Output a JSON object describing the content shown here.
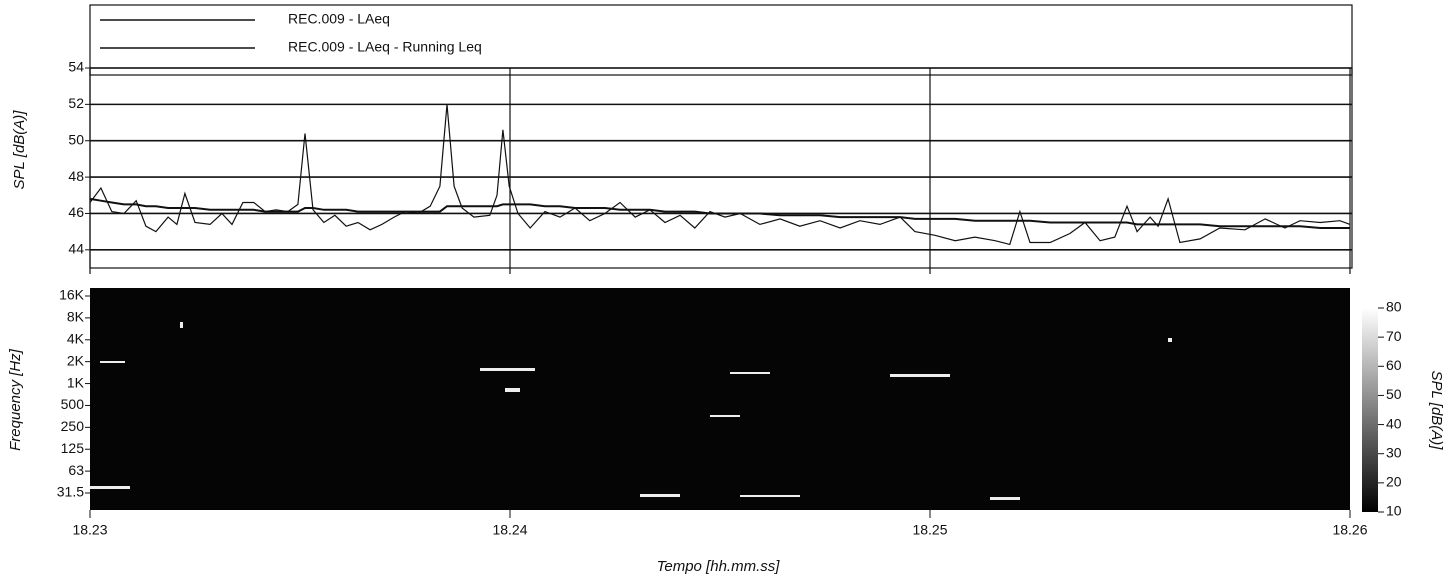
{
  "chart_data": [
    {
      "type": "line",
      "y_label": "SPL [dB(A)]",
      "xlim": [
        18.23,
        18.26
      ],
      "xticks": [
        18.23,
        18.24,
        18.25,
        18.26
      ],
      "ylim": [
        43,
        54
      ],
      "yticks": [
        44,
        46,
        48,
        50,
        52,
        54
      ],
      "grid": true,
      "legend": "top",
      "x": [
        18.23,
        18.23026,
        18.23052,
        18.23081,
        18.2311,
        18.23133,
        18.23157,
        18.23186,
        18.23207,
        18.23226,
        18.2325,
        18.23286,
        18.23314,
        18.23338,
        18.23364,
        18.2339,
        18.23417,
        18.23443,
        18.23471,
        18.23495,
        18.23512,
        18.23531,
        18.23557,
        18.23583,
        18.2361,
        18.23638,
        18.23667,
        18.23695,
        18.23724,
        18.2375,
        18.23781,
        18.2381,
        18.23833,
        18.2385,
        18.23867,
        18.23886,
        18.23914,
        18.23952,
        18.23969,
        18.23983,
        18.23998,
        18.24019,
        18.24048,
        18.24083,
        18.24119,
        18.24155,
        18.2419,
        18.24226,
        18.24262,
        18.24298,
        18.24333,
        18.24369,
        18.24405,
        18.2444,
        18.24476,
        18.24512,
        18.24548,
        18.24595,
        18.24643,
        18.2469,
        18.24738,
        18.24786,
        18.24833,
        18.24881,
        18.24929,
        18.24964,
        18.25012,
        18.2506,
        18.25107,
        18.25155,
        18.2519,
        18.25214,
        18.25238,
        18.25286,
        18.25333,
        18.25369,
        18.25405,
        18.2544,
        18.25469,
        18.25493,
        18.25524,
        18.25543,
        18.25567,
        18.25595,
        18.25643,
        18.2569,
        18.2575,
        18.25798,
        18.25845,
        18.25881,
        18.25929,
        18.25976,
        18.26
      ],
      "series": [
        {
          "name": "REC.009 - LAeq",
          "color": "#111111",
          "values": [
            46.6,
            47.4,
            46.1,
            46.0,
            46.7,
            45.3,
            45.0,
            45.8,
            45.4,
            47.1,
            45.5,
            45.4,
            46.0,
            45.4,
            46.6,
            46.6,
            46.1,
            46.2,
            46.1,
            46.5,
            50.4,
            46.2,
            45.5,
            45.9,
            45.3,
            45.5,
            45.1,
            45.4,
            45.8,
            46.1,
            46.0,
            46.4,
            47.5,
            52.0,
            47.5,
            46.3,
            45.8,
            45.9,
            47.0,
            50.6,
            47.5,
            46.0,
            45.2,
            46.1,
            45.8,
            46.3,
            45.6,
            46.0,
            46.6,
            45.8,
            46.2,
            45.5,
            45.9,
            45.2,
            46.1,
            45.8,
            46.0,
            45.4,
            45.7,
            45.3,
            45.6,
            45.2,
            45.6,
            45.4,
            45.8,
            45.0,
            44.8,
            44.5,
            44.7,
            44.5,
            44.3,
            46.1,
            44.4,
            44.4,
            44.9,
            45.5,
            44.5,
            44.7,
            46.4,
            45.0,
            45.8,
            45.3,
            46.8,
            44.4,
            44.6,
            45.2,
            45.1,
            45.7,
            45.2,
            45.6,
            45.5,
            45.6,
            45.4
          ]
        },
        {
          "name": "REC.009 - LAeq - Running Leq",
          "color": "#111111",
          "values": [
            46.8,
            46.7,
            46.6,
            46.5,
            46.5,
            46.4,
            46.4,
            46.3,
            46.3,
            46.3,
            46.3,
            46.2,
            46.2,
            46.2,
            46.2,
            46.2,
            46.1,
            46.1,
            46.1,
            46.1,
            46.3,
            46.3,
            46.2,
            46.2,
            46.2,
            46.1,
            46.1,
            46.1,
            46.1,
            46.1,
            46.1,
            46.1,
            46.1,
            46.4,
            46.4,
            46.4,
            46.4,
            46.4,
            46.4,
            46.5,
            46.5,
            46.5,
            46.5,
            46.4,
            46.4,
            46.3,
            46.3,
            46.3,
            46.2,
            46.2,
            46.2,
            46.1,
            46.1,
            46.1,
            46.0,
            46.0,
            46.0,
            46.0,
            45.9,
            45.9,
            45.9,
            45.8,
            45.8,
            45.8,
            45.8,
            45.7,
            45.7,
            45.7,
            45.6,
            45.6,
            45.6,
            45.6,
            45.6,
            45.5,
            45.5,
            45.5,
            45.5,
            45.5,
            45.5,
            45.4,
            45.4,
            45.4,
            45.4,
            45.4,
            45.4,
            45.3,
            45.3,
            45.3,
            45.3,
            45.3,
            45.2,
            45.2,
            45.2
          ]
        }
      ]
    },
    {
      "type": "heatmap",
      "x_label": "Tempo [hh.mm.ss]",
      "y_label": "Frequency [Hz]",
      "xlim": [
        18.23,
        18.26
      ],
      "xticks": [
        18.23,
        18.24,
        18.25,
        18.26
      ],
      "y_categories": [
        "16K",
        "8K",
        "4K",
        "2K",
        "1K",
        "500",
        "250",
        "125",
        "63",
        "31.5"
      ],
      "colorbar_label": "SPL [dB(A)]",
      "colorbar_lim": [
        10,
        80
      ],
      "colorbar_ticks": [
        10,
        20,
        30,
        40,
        50,
        60,
        70,
        80
      ]
    }
  ]
}
